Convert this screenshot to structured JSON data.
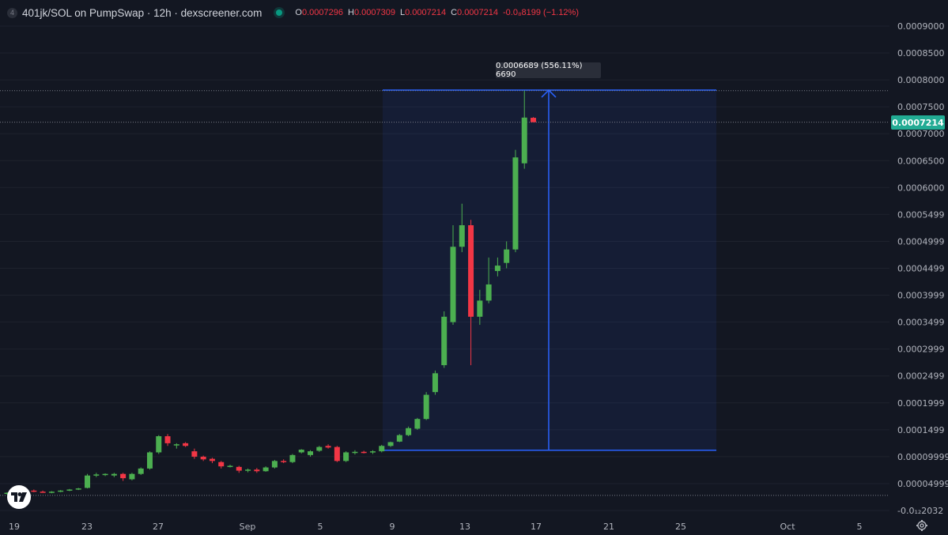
{
  "header": {
    "badge": "4",
    "title": "401jk/SOL on PumpSwap · 12h · dexscreener.com",
    "ohlc": [
      {
        "key": "O",
        "value": "0.0007296"
      },
      {
        "key": "H",
        "value": "0.0007309"
      },
      {
        "key": "L",
        "value": "0.0007214"
      },
      {
        "key": "C",
        "value": "0.0007214"
      },
      {
        "key": "",
        "value": "-0.0₈8199 (−1.12%)"
      }
    ]
  },
  "measure_tooltip": "0.0006689 (556.11%) 6690",
  "last_price_label": "0.0007214",
  "colors": {
    "background": "#131722",
    "up": "#4caf50",
    "down": "#f23645",
    "measure": "#2962ff",
    "last_price": "#22ab94"
  },
  "icons": {
    "logo": "tradingview-logo-icon",
    "settings": "gear-icon"
  },
  "chart_data": {
    "type": "candlestick",
    "interval": "12h",
    "y_ticks": [
      "0.0009000",
      "0.0008500",
      "0.0008000",
      "0.0007500",
      "0.0007000",
      "0.0006500",
      "0.0006000",
      "0.0005499",
      "0.0004999",
      "0.0004499",
      "0.0003999",
      "0.0003499",
      "0.0002999",
      "0.0002499",
      "0.0001999",
      "0.0001499",
      "0.00009999",
      "0.00004999",
      "-0.0₁₂2032"
    ],
    "ylim": [
      0,
      0.00092
    ],
    "x_ticks": [
      "19",
      "23",
      "27",
      "Sep",
      "5",
      "9",
      "13",
      "17",
      "21",
      "25",
      "Oct",
      "5"
    ],
    "candles": [
      {
        "o": 3.1e-05,
        "h": 3.4e-05,
        "l": 2.9e-05,
        "c": 3.3e-05
      },
      {
        "o": 3.3e-05,
        "h": 3.5e-05,
        "l": 3.1e-05,
        "c": 3.4e-05
      },
      {
        "o": 3.4e-05,
        "h": 3.8e-05,
        "l": 3.2e-05,
        "c": 3.7e-05
      },
      {
        "o": 3.7e-05,
        "h": 3.9e-05,
        "l": 3.4e-05,
        "c": 3.5e-05
      },
      {
        "o": 3.5e-05,
        "h": 3.7e-05,
        "l": 3.3e-05,
        "c": 3.4e-05
      },
      {
        "o": 3.4e-05,
        "h": 3.6e-05,
        "l": 3.2e-05,
        "c": 3.5e-05
      },
      {
        "o": 3.5e-05,
        "h": 3.8e-05,
        "l": 3.4e-05,
        "c": 3.7e-05
      },
      {
        "o": 3.7e-05,
        "h": 4e-05,
        "l": 3.6e-05,
        "c": 3.9e-05
      },
      {
        "o": 3.9e-05,
        "h": 4.2e-05,
        "l": 3.8e-05,
        "c": 4.1e-05
      },
      {
        "o": 4.2e-05,
        "h": 6.8e-05,
        "l": 4.1e-05,
        "c": 6.5e-05
      },
      {
        "o": 6.5e-05,
        "h": 7e-05,
        "l": 6.2e-05,
        "c": 6.7e-05
      },
      {
        "o": 6.7e-05,
        "h": 6.9e-05,
        "l": 6.4e-05,
        "c": 6.8e-05
      },
      {
        "o": 6.5e-05,
        "h": 7e-05,
        "l": 6.2e-05,
        "c": 6.8e-05
      },
      {
        "o": 6.8e-05,
        "h": 7e-05,
        "l": 5.5e-05,
        "c": 6e-05
      },
      {
        "o": 5.8e-05,
        "h": 7e-05,
        "l": 5.6e-05,
        "c": 6.8e-05
      },
      {
        "o": 6.8e-05,
        "h": 8e-05,
        "l": 6.6e-05,
        "c": 7.8e-05
      },
      {
        "o": 7.8e-05,
        "h": 0.00011,
        "l": 7.6e-05,
        "c": 0.000108
      },
      {
        "o": 0.000108,
        "h": 0.00014,
        "l": 0.000105,
        "c": 0.000138
      },
      {
        "o": 0.000138,
        "h": 0.000142,
        "l": 0.00012,
        "c": 0.000125
      },
      {
        "o": 0.000122,
        "h": 0.000125,
        "l": 0.000115,
        "c": 0.000123
      },
      {
        "o": 0.000125,
        "h": 0.000127,
        "l": 0.000118,
        "c": 0.00012
      },
      {
        "o": 0.00011,
        "h": 0.000115,
        "l": 9.6e-05,
        "c": 0.0001
      },
      {
        "o": 0.0001,
        "h": 0.000102,
        "l": 9.2e-05,
        "c": 9.5e-05
      },
      {
        "o": 9.6e-05,
        "h": 9.8e-05,
        "l": 8.8e-05,
        "c": 9.2e-05
      },
      {
        "o": 9e-05,
        "h": 9.2e-05,
        "l": 7.8e-05,
        "c": 8.2e-05
      },
      {
        "o": 8.3e-05,
        "h": 8.5e-05,
        "l": 8e-05,
        "c": 8.3e-05
      },
      {
        "o": 8.1e-05,
        "h": 8.3e-05,
        "l": 7e-05,
        "c": 7.4e-05
      },
      {
        "o": 7.5e-05,
        "h": 7.8e-05,
        "l": 7.1e-05,
        "c": 7.6e-05
      },
      {
        "o": 7.6e-05,
        "h": 7.9e-05,
        "l": 7e-05,
        "c": 7.3e-05
      },
      {
        "o": 7.3e-05,
        "h": 8.2e-05,
        "l": 7.2e-05,
        "c": 8e-05
      },
      {
        "o": 8e-05,
        "h": 9.4e-05,
        "l": 7.8e-05,
        "c": 9.2e-05
      },
      {
        "o": 9.2e-05,
        "h": 9.5e-05,
        "l": 8.8e-05,
        "c": 9e-05
      },
      {
        "o": 9e-05,
        "h": 0.000105,
        "l": 8.8e-05,
        "c": 0.000103
      },
      {
        "o": 0.000108,
        "h": 0.000114,
        "l": 0.000106,
        "c": 0.000113
      },
      {
        "o": 0.000103,
        "h": 0.000112,
        "l": 0.0001,
        "c": 0.00011
      },
      {
        "o": 0.000111,
        "h": 0.00012,
        "l": 0.000109,
        "c": 0.000118
      },
      {
        "o": 0.00012,
        "h": 0.000123,
        "l": 0.000115,
        "c": 0.000117
      },
      {
        "o": 0.000118,
        "h": 0.00012,
        "l": 9e-05,
        "c": 9.2e-05
      },
      {
        "o": 9.2e-05,
        "h": 0.00011,
        "l": 9e-05,
        "c": 0.000108
      },
      {
        "o": 0.000108,
        "h": 0.000112,
        "l": 0.000104,
        "c": 0.000109
      },
      {
        "o": 0.000109,
        "h": 0.000111,
        "l": 0.000106,
        "c": 0.000108
      },
      {
        "o": 0.000108,
        "h": 0.000112,
        "l": 0.000105,
        "c": 0.00011
      },
      {
        "o": 0.00011,
        "h": 0.000122,
        "l": 0.000108,
        "c": 0.00012
      },
      {
        "o": 0.00012,
        "h": 0.000128,
        "l": 0.000118,
        "c": 0.000127
      },
      {
        "o": 0.000128,
        "h": 0.000142,
        "l": 0.000127,
        "c": 0.00014
      },
      {
        "o": 0.00014,
        "h": 0.000156,
        "l": 0.000138,
        "c": 0.000153
      },
      {
        "o": 0.000152,
        "h": 0.000172,
        "l": 0.00015,
        "c": 0.00017
      },
      {
        "o": 0.00017,
        "h": 0.00022,
        "l": 0.000168,
        "c": 0.000215
      },
      {
        "o": 0.00022,
        "h": 0.00026,
        "l": 0.000215,
        "c": 0.000255
      },
      {
        "o": 0.00027,
        "h": 0.00037,
        "l": 0.000265,
        "c": 0.00036
      },
      {
        "o": 0.00035,
        "h": 0.00053,
        "l": 0.000345,
        "c": 0.00049
      },
      {
        "o": 0.00049,
        "h": 0.00057,
        "l": 0.00048,
        "c": 0.00053
      },
      {
        "o": 0.00053,
        "h": 0.00054,
        "l": 0.00027,
        "c": 0.00036
      },
      {
        "o": 0.00036,
        "h": 0.00041,
        "l": 0.000345,
        "c": 0.00039
      },
      {
        "o": 0.00039,
        "h": 0.00047,
        "l": 0.000385,
        "c": 0.00042
      },
      {
        "o": 0.000445,
        "h": 0.00047,
        "l": 0.000435,
        "c": 0.000455
      },
      {
        "o": 0.00046,
        "h": 0.0005,
        "l": 0.00045,
        "c": 0.000485
      },
      {
        "o": 0.000485,
        "h": 0.00067,
        "l": 0.00048,
        "c": 0.000656
      },
      {
        "o": 0.000645,
        "h": 0.00078,
        "l": 0.000635,
        "c": 0.00073
      },
      {
        "o": 0.0007296,
        "h": 0.0007309,
        "l": 0.0007214,
        "c": 0.0007214
      }
    ]
  }
}
